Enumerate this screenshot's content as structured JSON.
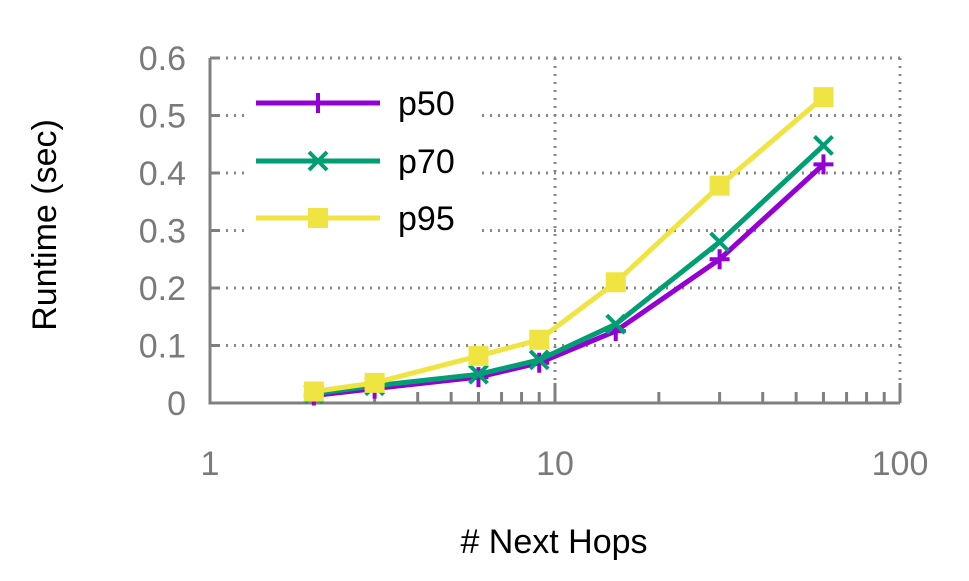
{
  "chart_data": {
    "type": "line",
    "xlabel": "# Next Hops",
    "ylabel": "Runtime (sec)",
    "xscale": "log",
    "xlim": [
      1,
      100
    ],
    "ylim": [
      0,
      0.6
    ],
    "xticks": [
      1,
      10,
      100
    ],
    "xtick_labels": [
      "1",
      "10",
      "100"
    ],
    "yticks": [
      0,
      0.1,
      0.2,
      0.3,
      0.4,
      0.5,
      0.6
    ],
    "ytick_labels": [
      "0",
      "0.1",
      "0.2",
      "0.3",
      "0.4",
      "0.5",
      "0.6"
    ],
    "grid": true,
    "legend_position": "top-left",
    "x": [
      2,
      3,
      6,
      9,
      15,
      30,
      60
    ],
    "series": [
      {
        "name": "p50",
        "color": "#9400d3",
        "marker": "plus",
        "values": [
          0.013,
          0.025,
          0.045,
          0.07,
          0.125,
          0.25,
          0.415
        ]
      },
      {
        "name": "p70",
        "color": "#009e73",
        "marker": "cross",
        "values": [
          0.016,
          0.03,
          0.05,
          0.075,
          0.137,
          0.28,
          0.448
        ]
      },
      {
        "name": "p95",
        "color": "#f0e442",
        "marker": "square",
        "values": [
          0.02,
          0.035,
          0.082,
          0.11,
          0.21,
          0.378,
          0.532
        ]
      }
    ]
  }
}
